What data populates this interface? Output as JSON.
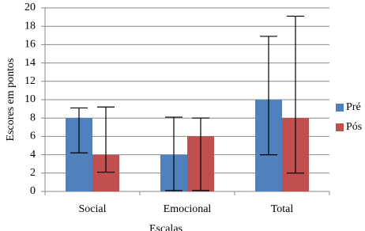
{
  "chart_data": {
    "type": "bar",
    "categories": [
      "Social",
      "Emocional",
      "Total"
    ],
    "series": [
      {
        "name": "Pré",
        "color": "#4f81bd",
        "values": [
          8,
          4,
          10
        ],
        "error_bars": [
          [
            4.2,
            9.1
          ],
          [
            0.1,
            8.1
          ],
          [
            4,
            16.9
          ]
        ]
      },
      {
        "name": "Pós",
        "color": "#c0504d",
        "values": [
          4,
          6,
          8
        ],
        "error_bars": [
          [
            2.1,
            9.2
          ],
          [
            0.1,
            8
          ],
          [
            2,
            19.1
          ]
        ]
      }
    ],
    "ylim": [
      0,
      20
    ],
    "yticks": [
      0,
      2,
      4,
      6,
      8,
      10,
      12,
      14,
      16,
      18,
      20
    ],
    "y_label": "Escores em pontos",
    "x_label": "Escalas",
    "grid": true,
    "legend": "right"
  }
}
